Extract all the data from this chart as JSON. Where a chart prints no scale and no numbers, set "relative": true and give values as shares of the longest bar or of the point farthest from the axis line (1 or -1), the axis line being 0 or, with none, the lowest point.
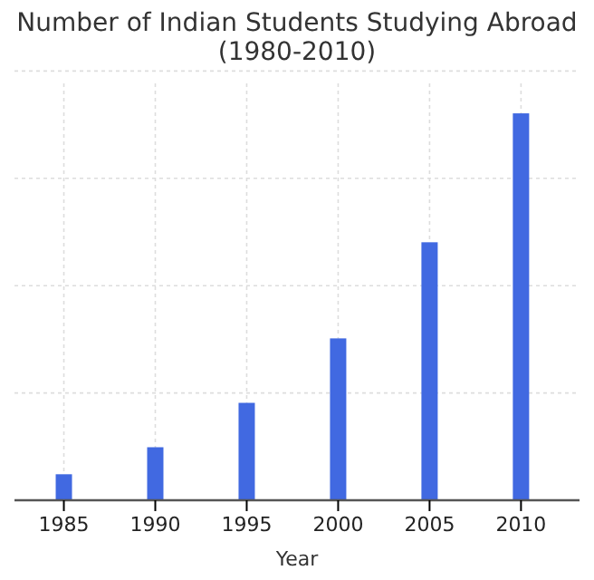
{
  "chart_data": {
    "type": "bar",
    "title": "Number of Indian Students Studying Abroad (1980-2010)",
    "xlabel": "Year",
    "x": [
      1985,
      1990,
      1995,
      2000,
      2005,
      2010
    ],
    "values": [
      0.065,
      0.135,
      0.25,
      0.417,
      0.666,
      1
    ],
    "color": "#4169e1",
    "relative": true,
    "xlim": [
      1982.3,
      2013.2
    ],
    "xticks": [
      1985,
      1990,
      1995,
      2000,
      2005,
      2010
    ],
    "grid": true,
    "tick_labels": "x"
  }
}
